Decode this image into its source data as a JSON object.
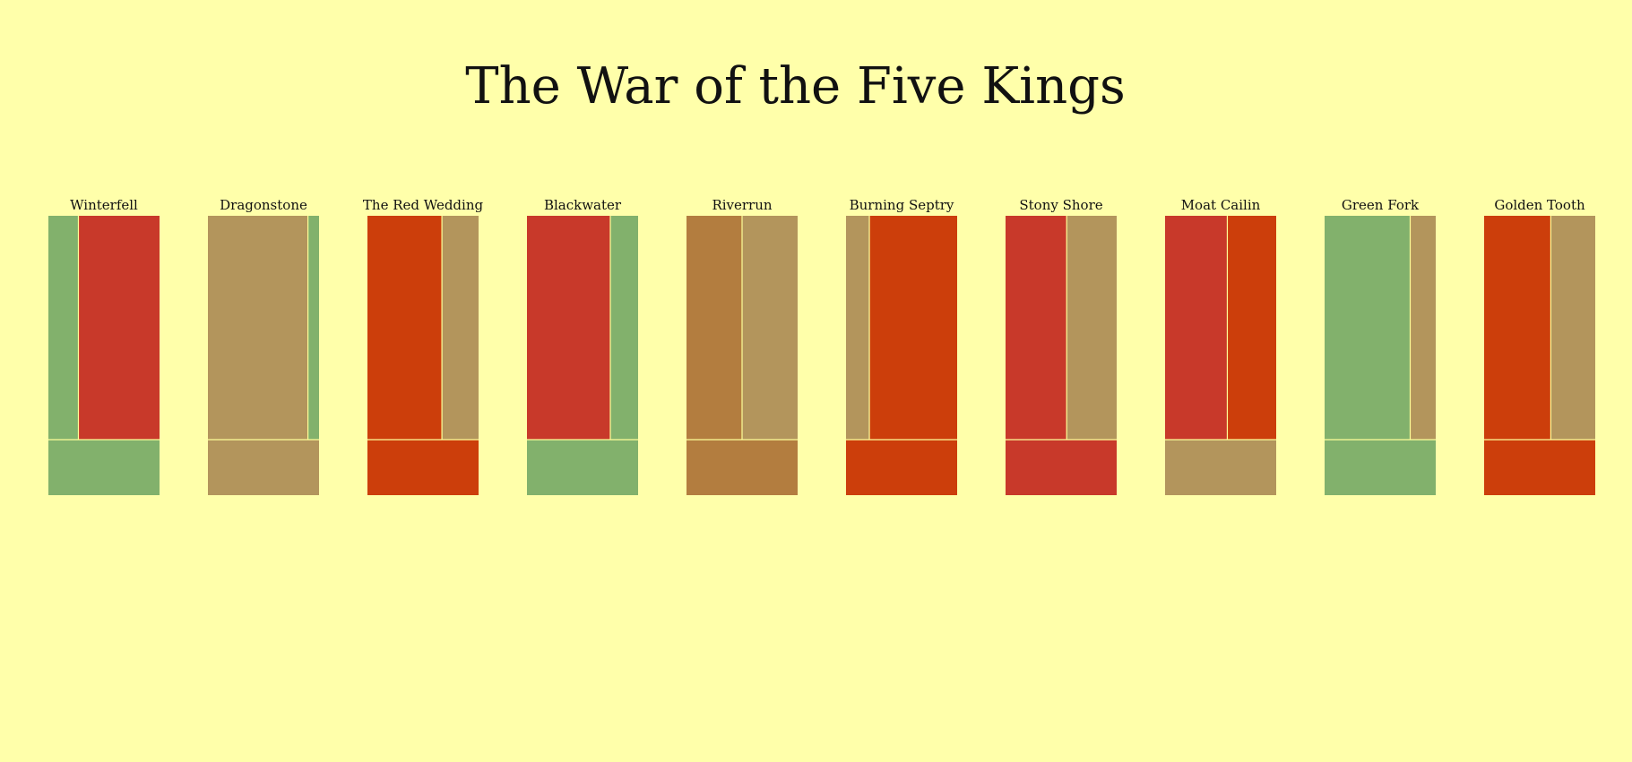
{
  "title": "The War of the Five Kings",
  "colors": {
    "background": "#ffffaa",
    "divider": "#ffff99",
    "stark": "#82b16c",
    "lannister": "#c8392a",
    "baratheon": "#b3955c",
    "greyjoy": "#cc3e0b",
    "tully": "#b37d3f"
  },
  "chart_data": {
    "type": "bar",
    "note_type": "proportional stacked columns (attacker/defender share) with winner band",
    "battles": [
      {
        "name": "Winterfell",
        "segments": [
          {
            "color": "#82b16c",
            "share": 0.27
          },
          {
            "color": "#c8392a",
            "share": 0.73
          }
        ],
        "winner_color": "#82b16c"
      },
      {
        "name": "Dragonstone",
        "segments": [
          {
            "color": "#b3955c",
            "share": 0.9
          },
          {
            "color": "#82b16c",
            "share": 0.1
          }
        ],
        "winner_color": "#b3955c"
      },
      {
        "name": "The Red Wedding",
        "segments": [
          {
            "color": "#cc3e0b",
            "share": 0.67
          },
          {
            "color": "#b3955c",
            "share": 0.33
          }
        ],
        "winner_color": "#cc3e0b"
      },
      {
        "name": "Blackwater",
        "segments": [
          {
            "color": "#c8392a",
            "share": 0.75
          },
          {
            "color": "#82b16c",
            "share": 0.25
          }
        ],
        "winner_color": "#82b16c"
      },
      {
        "name": "Riverrun",
        "segments": [
          {
            "color": "#b37d3f",
            "share": 0.5
          },
          {
            "color": "#b3955c",
            "share": 0.5
          }
        ],
        "winner_color": "#b37d3f"
      },
      {
        "name": "Burning Septry",
        "segments": [
          {
            "color": "#b3955c",
            "share": 0.21
          },
          {
            "color": "#cc3e0b",
            "share": 0.79
          }
        ],
        "winner_color": "#cc3e0b"
      },
      {
        "name": "Stony Shore",
        "segments": [
          {
            "color": "#c8392a",
            "share": 0.55
          },
          {
            "color": "#b3955c",
            "share": 0.45
          }
        ],
        "winner_color": "#c8392a"
      },
      {
        "name": "Moat Cailin",
        "segments": [
          {
            "color": "#c8392a",
            "share": 0.56
          },
          {
            "color": "#cc3e0b",
            "share": 0.44
          }
        ],
        "winner_color": "#b3955c"
      },
      {
        "name": "Green Fork",
        "segments": [
          {
            "color": "#82b16c",
            "share": 0.77
          },
          {
            "color": "#b3955c",
            "share": 0.23
          }
        ],
        "winner_color": "#82b16c"
      },
      {
        "name": "Golden Tooth",
        "segments": [
          {
            "color": "#cc3e0b",
            "share": 0.6
          },
          {
            "color": "#b3955c",
            "share": 0.4
          }
        ],
        "winner_color": "#cc3e0b"
      }
    ]
  }
}
